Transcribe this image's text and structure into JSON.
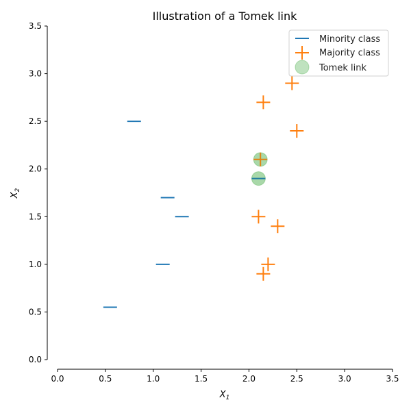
{
  "chart_data": {
    "type": "scatter",
    "title": "Illustration of a Tomek link",
    "xlabel": "X_1",
    "ylabel": "X_2",
    "xlim": [
      0,
      3.5
    ],
    "ylim": [
      0,
      3.5
    ],
    "xticks": [
      "0.0",
      "0.5",
      "1.0",
      "1.5",
      "2.0",
      "2.5",
      "3.0",
      "3.5"
    ],
    "yticks": [
      "0.0",
      "0.5",
      "1.0",
      "1.5",
      "2.0",
      "2.5",
      "3.0",
      "3.5"
    ],
    "grid": false,
    "legend_position": "top-right",
    "series": [
      {
        "name": "Minority class",
        "marker": "hline",
        "color": "#1f77b4",
        "points": [
          [
            0.8,
            2.5
          ],
          [
            1.15,
            1.7
          ],
          [
            1.3,
            1.5
          ],
          [
            1.1,
            1.0
          ],
          [
            0.55,
            0.55
          ],
          [
            2.1,
            1.9
          ]
        ]
      },
      {
        "name": "Majority class",
        "marker": "plus",
        "color": "#ff7f0e",
        "points": [
          [
            2.45,
            2.9
          ],
          [
            2.15,
            2.7
          ],
          [
            2.5,
            2.4
          ],
          [
            2.12,
            2.1
          ],
          [
            2.1,
            1.5
          ],
          [
            2.3,
            1.4
          ],
          [
            2.2,
            1.0
          ],
          [
            2.15,
            0.9
          ]
        ]
      },
      {
        "name": "Tomek link",
        "marker": "circle",
        "color": "#2ca02c",
        "points": [
          [
            2.12,
            2.1
          ],
          [
            2.1,
            1.9
          ]
        ]
      }
    ]
  }
}
